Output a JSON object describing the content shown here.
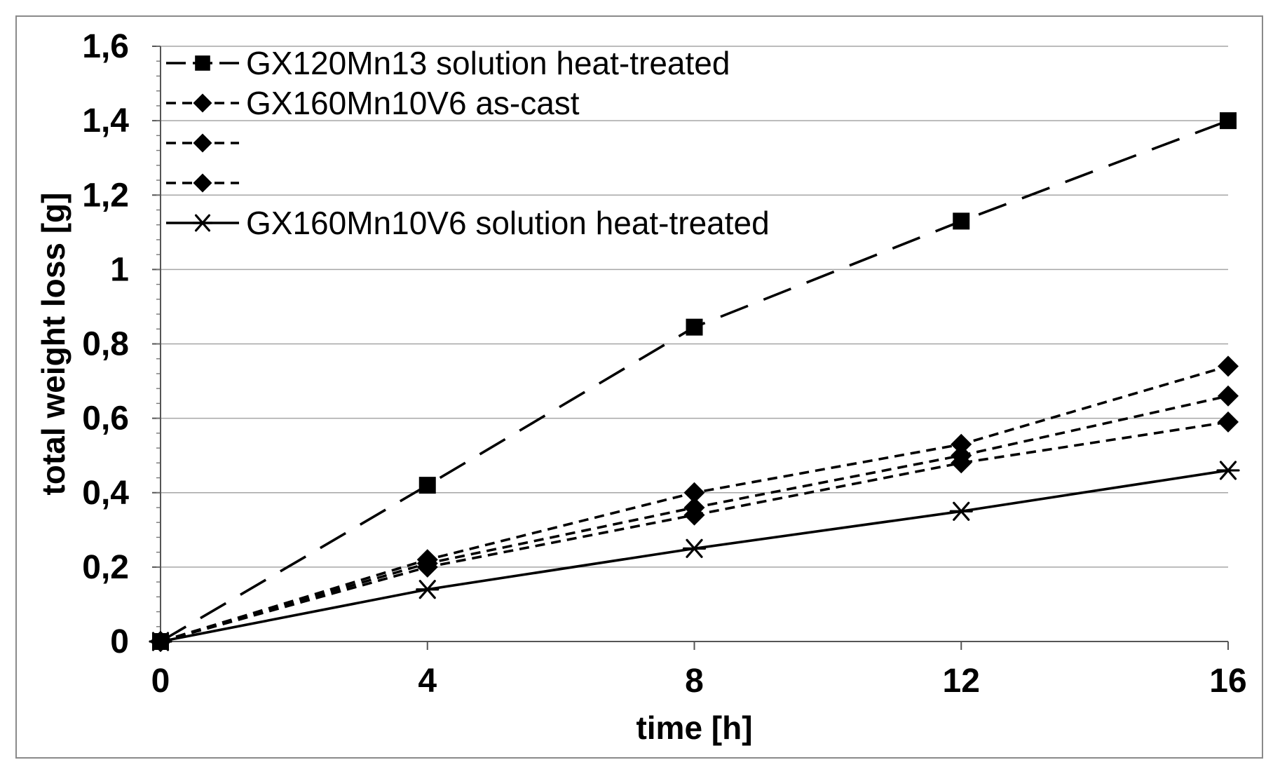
{
  "chart_data": {
    "type": "line",
    "xlabel": "time [h]",
    "ylabel": "total weight loss [g]",
    "x": [
      0,
      4,
      8,
      12,
      16
    ],
    "xlim": [
      0,
      16
    ],
    "ylim": [
      0,
      1.6
    ],
    "x_ticks": [
      "0",
      "4",
      "8",
      "12",
      "16"
    ],
    "y_ticks": [
      {
        "value": 0,
        "label": "0"
      },
      {
        "value": 0.2,
        "label": "0,2"
      },
      {
        "value": 0.4,
        "label": "0,4"
      },
      {
        "value": 0.6,
        "label": "0,6"
      },
      {
        "value": 0.8,
        "label": "0,8"
      },
      {
        "value": 1.0,
        "label": "1"
      },
      {
        "value": 1.2,
        "label": "1,2"
      },
      {
        "value": 1.4,
        "label": "1,4"
      },
      {
        "value": 1.6,
        "label": "1,6"
      }
    ],
    "grid": "horizontal",
    "legend_position": "top-left",
    "series": [
      {
        "name": "GX120Mn13 solution heat-treated",
        "values": [
          0,
          0.42,
          0.845,
          1.13,
          1.4
        ],
        "marker": "square",
        "line": "long-dash",
        "color": "#000000"
      },
      {
        "name": "GX160Mn10V6 as-cast",
        "values": [
          0,
          0.22,
          0.4,
          0.53,
          0.74
        ],
        "marker": "diamond",
        "line": "short-dash",
        "color": "#000000"
      },
      {
        "name": "",
        "values": [
          0,
          0.21,
          0.36,
          0.5,
          0.66
        ],
        "marker": "diamond",
        "line": "short-dash",
        "color": "#000000"
      },
      {
        "name": "",
        "values": [
          0,
          0.2,
          0.34,
          0.48,
          0.59
        ],
        "marker": "diamond",
        "line": "short-dash",
        "color": "#000000"
      },
      {
        "name": "GX160Mn10V6 solution heat-treated",
        "values": [
          0,
          0.14,
          0.25,
          0.35,
          0.46
        ],
        "marker": "asterisk",
        "line": "solid",
        "color": "#000000"
      }
    ]
  }
}
